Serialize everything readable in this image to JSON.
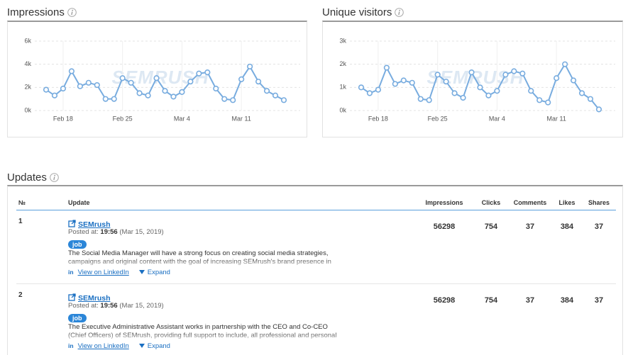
{
  "chart_data": [
    {
      "type": "line",
      "title": "Impressions",
      "watermark": "SEMRUSH",
      "categories": [
        null,
        null,
        "Feb 18",
        null,
        null,
        null,
        null,
        null,
        null,
        "Feb 25",
        null,
        null,
        null,
        null,
        null,
        null,
        "Mar 4",
        null,
        null,
        null,
        null,
        null,
        null,
        "Mar 11",
        null,
        null,
        null,
        null,
        null
      ],
      "values": [
        1800,
        1300,
        1900,
        3400,
        2100,
        2400,
        2200,
        1000,
        1000,
        2800,
        2400,
        1500,
        1300,
        2800,
        1700,
        1200,
        1600,
        2500,
        3200,
        3300,
        1900,
        1000,
        900,
        2700,
        3800,
        2500,
        1700,
        1300,
        900
      ],
      "color": "#78acdf",
      "ylim": [
        0,
        6000
      ],
      "yticks": [
        {
          "value": 0,
          "label": "0k"
        },
        {
          "value": 2000,
          "label": "2k"
        },
        {
          "value": 4000,
          "label": "4k"
        },
        {
          "value": 6000,
          "label": "6k"
        }
      ],
      "grid": true
    },
    {
      "type": "line",
      "title": "Unique visitors",
      "watermark": "SEMRUSH",
      "categories": [
        null,
        null,
        "Feb 18",
        null,
        null,
        null,
        null,
        null,
        null,
        "Feb 25",
        null,
        null,
        null,
        null,
        null,
        null,
        "Mar 4",
        null,
        null,
        null,
        null,
        null,
        null,
        "Mar 11",
        null,
        null,
        null,
        null,
        null
      ],
      "values": [
        1000,
        750,
        900,
        1850,
        1150,
        1300,
        1200,
        500,
        450,
        1550,
        1250,
        750,
        550,
        1650,
        1000,
        650,
        850,
        1550,
        1700,
        1600,
        850,
        450,
        350,
        1400,
        2000,
        1300,
        750,
        500,
        50
      ],
      "color": "#78acdf",
      "ylim": [
        0,
        3000
      ],
      "yticks": [
        {
          "value": 0,
          "label": "0k"
        },
        {
          "value": 1000,
          "label": "1k"
        },
        {
          "value": 2000,
          "label": "2k"
        },
        {
          "value": 3000,
          "label": "3k"
        }
      ],
      "grid": true
    }
  ],
  "updates": {
    "title": "Updates",
    "columns": [
      "№",
      "Update",
      "Impressions",
      "Clicks",
      "Comments",
      "Likes",
      "Shares"
    ],
    "rows": [
      {
        "number": "1",
        "author": "SEMrush",
        "posted_label": "Posted at:",
        "time": "19:56",
        "date": "(Mar 15, 2019)",
        "tag": "job",
        "text": "The Social Media Manager will have a strong focus on creating social media strategies, campaigns and original content with the goal of increasing SEMrush's brand presence in the",
        "icon": "in",
        "link": "View on LinkedIn",
        "expand": "Expand",
        "metrics": [
          56298,
          754,
          37,
          384,
          37
        ]
      },
      {
        "number": "2",
        "author": "SEMrush",
        "posted_label": "Posted at:",
        "time": "19:56",
        "date": "(Mar 15, 2019)",
        "tag": "job",
        "text": "The Executive Administrative Assistant works in partnership with the CEO and Co-CEO (Chief Officers) of SEMrush, providing full support to include, all professional and personal duties",
        "icon": "in",
        "link": "View on LinkedIn",
        "expand": "Expand",
        "metrics": [
          56298,
          754,
          37,
          384,
          37
        ]
      }
    ]
  }
}
